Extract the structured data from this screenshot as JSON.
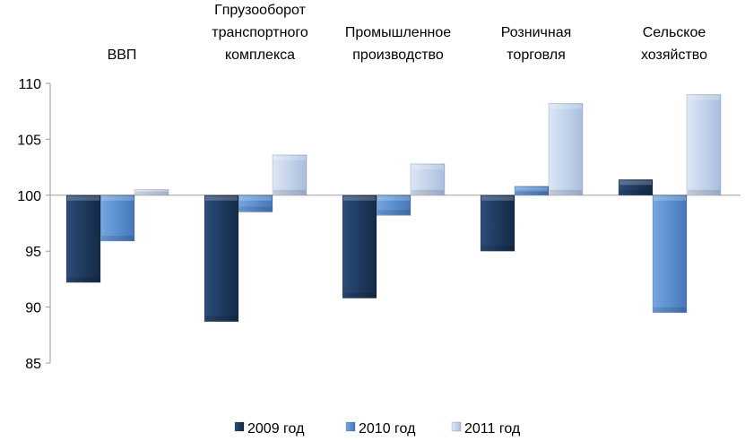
{
  "chart_data": {
    "type": "bar",
    "categories": [
      [
        "ВВП"
      ],
      [
        "Гпрузооборот",
        "транспортного",
        "комплекса"
      ],
      [
        "Промышленное",
        "производство"
      ],
      [
        "Розничная",
        "торговля"
      ],
      [
        "Сельское",
        "хозяйство"
      ]
    ],
    "series": [
      {
        "name": "2009 год",
        "color": "#1f3a5f",
        "values": [
          92.2,
          88.7,
          90.8,
          95.0,
          101.4
        ]
      },
      {
        "name": "2010 год",
        "color": "#5b8fd0",
        "values": [
          95.9,
          98.5,
          98.2,
          100.8,
          89.5
        ]
      },
      {
        "name": "2011 год",
        "color": "#c3d3ea",
        "values": [
          100.5,
          103.6,
          102.8,
          108.2,
          109.0
        ]
      }
    ],
    "baseline": 100,
    "ylim": [
      85,
      110
    ],
    "yticks": [
      85,
      90,
      95,
      100,
      105,
      110
    ],
    "legend_position": "bottom",
    "grid": false
  }
}
